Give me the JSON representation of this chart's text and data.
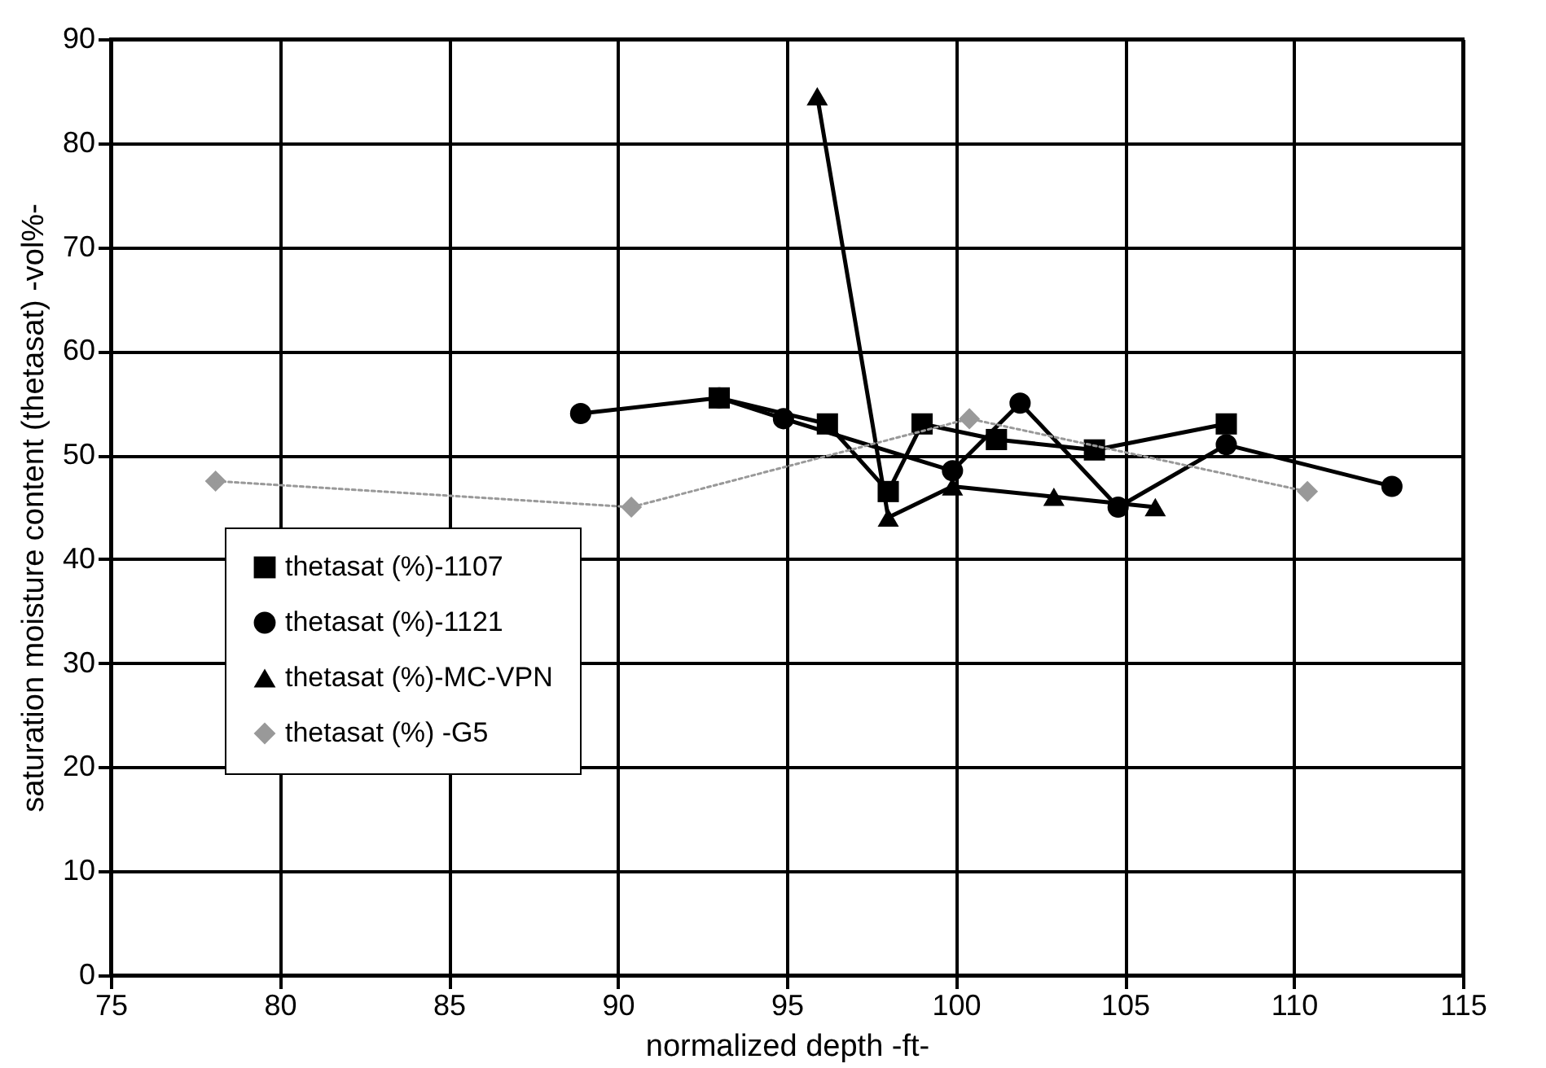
{
  "chart_data": {
    "type": "line",
    "xlabel": "normalized depth -ft-",
    "ylabel": "saturation moisture content (thetasat) -vol%-",
    "xlim": [
      75,
      115
    ],
    "xticks": [
      75,
      80,
      85,
      90,
      95,
      100,
      105,
      110,
      115
    ],
    "ylim": [
      0,
      90
    ],
    "yticks": [
      0,
      10,
      20,
      30,
      40,
      50,
      60,
      70,
      80,
      90
    ],
    "grid": true,
    "legend": "bottom left",
    "series": [
      {
        "name": "thetasat (%)-1107",
        "color": "#000000",
        "marker": "square",
        "line_style": "solid",
        "x": [
          93.0,
          96.2,
          98.0,
          99.0,
          101.2,
          104.1,
          108.0
        ],
        "values": [
          55.5,
          53,
          46.5,
          53,
          51.5,
          50.5,
          53
        ]
      },
      {
        "name": "thetasat (%)-1121",
        "color": "#000000",
        "marker": "circle",
        "line_style": "solid",
        "x": [
          88.9,
          93.0,
          94.9,
          99.9,
          101.9,
          104.8,
          108.0,
          112.9
        ],
        "values": [
          54,
          55.5,
          53.5,
          48.5,
          55,
          45,
          51,
          47
        ]
      },
      {
        "name": "thetasat (%)-MC-VPN",
        "color": "#000000",
        "marker": "triangle",
        "line_style": "solid",
        "x": [
          95.9,
          98.0,
          99.9,
          102.9,
          105.9
        ],
        "values": [
          84.5,
          44,
          47,
          46,
          45
        ]
      },
      {
        "name": "thetasat (%) -G5",
        "color": "#999999",
        "marker": "diamond",
        "line_style": "dotted",
        "x": [
          78.1,
          90.4,
          100.4,
          110.4
        ],
        "values": [
          47.5,
          45,
          53.5,
          46.5
        ]
      }
    ]
  }
}
